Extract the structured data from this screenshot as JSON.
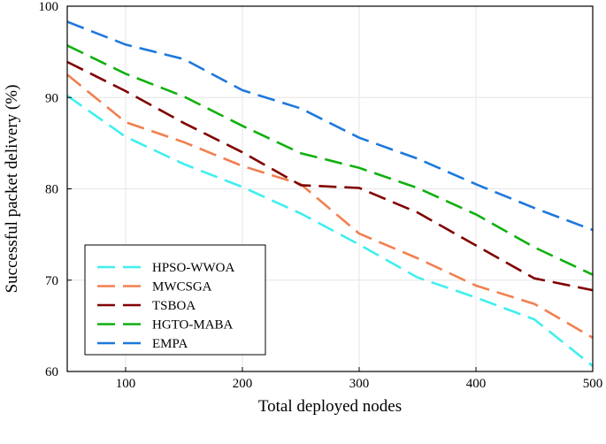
{
  "chart_data": {
    "type": "line",
    "title": "",
    "xlabel": "Total deployed nodes",
    "ylabel": "Successful packet delivery (%)",
    "xlim": [
      50,
      500
    ],
    "ylim": [
      60,
      100
    ],
    "xticks": [
      100,
      200,
      300,
      400,
      500
    ],
    "yticks": [
      60,
      70,
      80,
      90,
      100
    ],
    "grid": true,
    "legend_position": "bottom-left",
    "x": [
      50,
      100,
      150,
      200,
      250,
      300,
      350,
      400,
      450,
      500
    ],
    "series": [
      {
        "name": "HPSO-WWOA",
        "color": "#40eef0",
        "values": [
          90.2,
          85.7,
          82.7,
          80.2,
          77.3,
          73.9,
          70.3,
          68.1,
          65.7,
          60.6
        ]
      },
      {
        "name": "MWCSGA",
        "color": "#f08050",
        "values": [
          92.5,
          87.3,
          85.1,
          82.5,
          80.5,
          75.1,
          72.4,
          69.4,
          67.4,
          63.7
        ]
      },
      {
        "name": "TSBOA",
        "color": "#800000",
        "values": [
          93.9,
          90.7,
          87.2,
          84.0,
          80.4,
          80.1,
          77.4,
          73.8,
          70.2,
          68.9
        ]
      },
      {
        "name": "HGTO-MABA",
        "color": "#10b010",
        "values": [
          95.7,
          92.6,
          90.1,
          86.9,
          83.9,
          82.3,
          80.1,
          77.2,
          73.6,
          70.6
        ]
      },
      {
        "name": "EMPA",
        "color": "#1e78dc",
        "values": [
          98.3,
          95.8,
          94.2,
          90.8,
          88.8,
          85.6,
          83.3,
          80.5,
          77.9,
          75.5
        ]
      }
    ]
  }
}
